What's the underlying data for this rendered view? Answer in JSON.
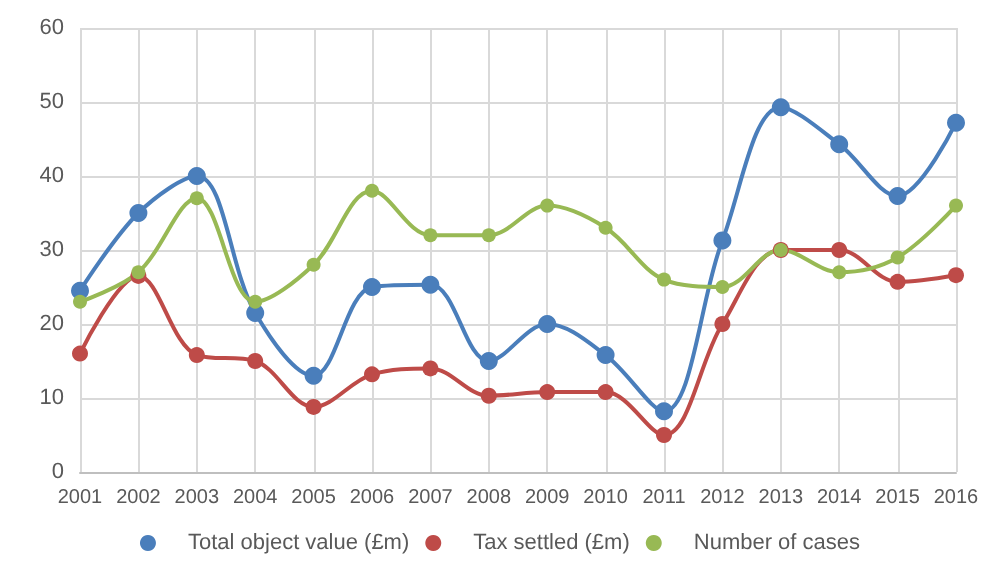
{
  "chart_data": {
    "type": "line",
    "categories": [
      "2001",
      "2002",
      "2003",
      "2004",
      "2005",
      "2006",
      "2007",
      "2008",
      "2009",
      "2010",
      "2011",
      "2012",
      "2013",
      "2014",
      "2015",
      "2016"
    ],
    "series": [
      {
        "name": "Total object value (£m)",
        "color": "#4a7ebb",
        "values": [
          24.5,
          35,
          40,
          21.5,
          13,
          25,
          25.3,
          15,
          20,
          15.8,
          8.2,
          31.3,
          49.3,
          44.3,
          37.3,
          47.2
        ]
      },
      {
        "name": "Tax settled (£m)",
        "color": "#be4b48",
        "values": [
          16,
          26.5,
          15.8,
          15,
          8.8,
          13.2,
          14,
          10.3,
          10.8,
          10.8,
          5,
          20,
          30,
          30,
          25.7,
          26.6
        ]
      },
      {
        "name": "Number of cases",
        "color": "#98b954",
        "values": [
          23,
          27,
          37,
          23,
          28,
          38,
          32,
          32,
          36,
          33,
          26,
          25,
          30,
          27,
          29,
          36
        ]
      }
    ],
    "ylim": [
      0,
      60
    ],
    "yticks": [
      0,
      10,
      20,
      30,
      40,
      50,
      60
    ],
    "grid": true,
    "legend": "bottom",
    "marker": "circle",
    "line_style": "solid"
  }
}
